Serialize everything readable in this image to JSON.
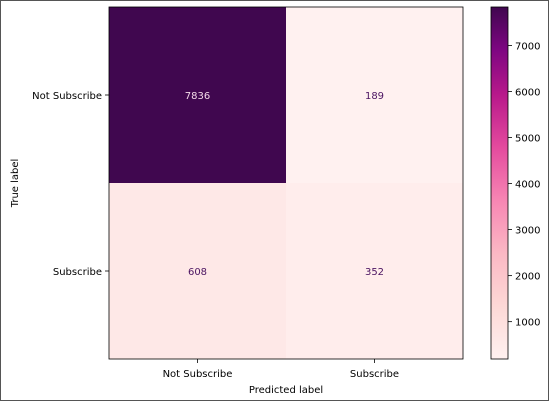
{
  "chart_data": {
    "type": "heatmap",
    "title": "",
    "xlabel": "Predicted label",
    "ylabel": "True label",
    "x_categories": [
      "Not Subscribe",
      "Subscribe"
    ],
    "y_categories": [
      "Not Subscribe",
      "Subscribe"
    ],
    "matrix": [
      [
        7836,
        189
      ],
      [
        608,
        352
      ]
    ],
    "colormap": "RdPu",
    "colorbar": {
      "range": [
        189,
        7836
      ],
      "ticks": [
        1000,
        2000,
        3000,
        4000,
        5000,
        6000,
        7000
      ]
    },
    "colors": {
      "text_on_dark": "#f3d9e8",
      "text_on_light": "#4b1461"
    }
  }
}
